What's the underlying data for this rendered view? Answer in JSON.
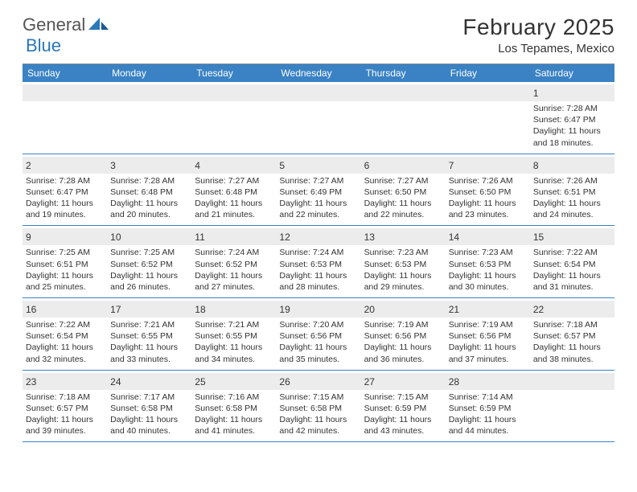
{
  "brand": {
    "part1": "General",
    "part2": "Blue"
  },
  "colors": {
    "header_bg": "#3a82c4",
    "daynum_bg": "#ececec",
    "week_border": "#3a82c4",
    "brand_blue": "#2b77b8",
    "text": "#333333"
  },
  "title": "February 2025",
  "location": "Los Tepames, Mexico",
  "weekdays": [
    "Sunday",
    "Monday",
    "Tuesday",
    "Wednesday",
    "Thursday",
    "Friday",
    "Saturday"
  ],
  "weeks": [
    [
      {
        "empty": true
      },
      {
        "empty": true
      },
      {
        "empty": true
      },
      {
        "empty": true
      },
      {
        "empty": true
      },
      {
        "empty": true
      },
      {
        "num": "1",
        "sunrise": "Sunrise: 7:28 AM",
        "sunset": "Sunset: 6:47 PM",
        "daylight1": "Daylight: 11 hours",
        "daylight2": "and 18 minutes."
      }
    ],
    [
      {
        "num": "2",
        "sunrise": "Sunrise: 7:28 AM",
        "sunset": "Sunset: 6:47 PM",
        "daylight1": "Daylight: 11 hours",
        "daylight2": "and 19 minutes."
      },
      {
        "num": "3",
        "sunrise": "Sunrise: 7:28 AM",
        "sunset": "Sunset: 6:48 PM",
        "daylight1": "Daylight: 11 hours",
        "daylight2": "and 20 minutes."
      },
      {
        "num": "4",
        "sunrise": "Sunrise: 7:27 AM",
        "sunset": "Sunset: 6:48 PM",
        "daylight1": "Daylight: 11 hours",
        "daylight2": "and 21 minutes."
      },
      {
        "num": "5",
        "sunrise": "Sunrise: 7:27 AM",
        "sunset": "Sunset: 6:49 PM",
        "daylight1": "Daylight: 11 hours",
        "daylight2": "and 22 minutes."
      },
      {
        "num": "6",
        "sunrise": "Sunrise: 7:27 AM",
        "sunset": "Sunset: 6:50 PM",
        "daylight1": "Daylight: 11 hours",
        "daylight2": "and 22 minutes."
      },
      {
        "num": "7",
        "sunrise": "Sunrise: 7:26 AM",
        "sunset": "Sunset: 6:50 PM",
        "daylight1": "Daylight: 11 hours",
        "daylight2": "and 23 minutes."
      },
      {
        "num": "8",
        "sunrise": "Sunrise: 7:26 AM",
        "sunset": "Sunset: 6:51 PM",
        "daylight1": "Daylight: 11 hours",
        "daylight2": "and 24 minutes."
      }
    ],
    [
      {
        "num": "9",
        "sunrise": "Sunrise: 7:25 AM",
        "sunset": "Sunset: 6:51 PM",
        "daylight1": "Daylight: 11 hours",
        "daylight2": "and 25 minutes."
      },
      {
        "num": "10",
        "sunrise": "Sunrise: 7:25 AM",
        "sunset": "Sunset: 6:52 PM",
        "daylight1": "Daylight: 11 hours",
        "daylight2": "and 26 minutes."
      },
      {
        "num": "11",
        "sunrise": "Sunrise: 7:24 AM",
        "sunset": "Sunset: 6:52 PM",
        "daylight1": "Daylight: 11 hours",
        "daylight2": "and 27 minutes."
      },
      {
        "num": "12",
        "sunrise": "Sunrise: 7:24 AM",
        "sunset": "Sunset: 6:53 PM",
        "daylight1": "Daylight: 11 hours",
        "daylight2": "and 28 minutes."
      },
      {
        "num": "13",
        "sunrise": "Sunrise: 7:23 AM",
        "sunset": "Sunset: 6:53 PM",
        "daylight1": "Daylight: 11 hours",
        "daylight2": "and 29 minutes."
      },
      {
        "num": "14",
        "sunrise": "Sunrise: 7:23 AM",
        "sunset": "Sunset: 6:53 PM",
        "daylight1": "Daylight: 11 hours",
        "daylight2": "and 30 minutes."
      },
      {
        "num": "15",
        "sunrise": "Sunrise: 7:22 AM",
        "sunset": "Sunset: 6:54 PM",
        "daylight1": "Daylight: 11 hours",
        "daylight2": "and 31 minutes."
      }
    ],
    [
      {
        "num": "16",
        "sunrise": "Sunrise: 7:22 AM",
        "sunset": "Sunset: 6:54 PM",
        "daylight1": "Daylight: 11 hours",
        "daylight2": "and 32 minutes."
      },
      {
        "num": "17",
        "sunrise": "Sunrise: 7:21 AM",
        "sunset": "Sunset: 6:55 PM",
        "daylight1": "Daylight: 11 hours",
        "daylight2": "and 33 minutes."
      },
      {
        "num": "18",
        "sunrise": "Sunrise: 7:21 AM",
        "sunset": "Sunset: 6:55 PM",
        "daylight1": "Daylight: 11 hours",
        "daylight2": "and 34 minutes."
      },
      {
        "num": "19",
        "sunrise": "Sunrise: 7:20 AM",
        "sunset": "Sunset: 6:56 PM",
        "daylight1": "Daylight: 11 hours",
        "daylight2": "and 35 minutes."
      },
      {
        "num": "20",
        "sunrise": "Sunrise: 7:19 AM",
        "sunset": "Sunset: 6:56 PM",
        "daylight1": "Daylight: 11 hours",
        "daylight2": "and 36 minutes."
      },
      {
        "num": "21",
        "sunrise": "Sunrise: 7:19 AM",
        "sunset": "Sunset: 6:56 PM",
        "daylight1": "Daylight: 11 hours",
        "daylight2": "and 37 minutes."
      },
      {
        "num": "22",
        "sunrise": "Sunrise: 7:18 AM",
        "sunset": "Sunset: 6:57 PM",
        "daylight1": "Daylight: 11 hours",
        "daylight2": "and 38 minutes."
      }
    ],
    [
      {
        "num": "23",
        "sunrise": "Sunrise: 7:18 AM",
        "sunset": "Sunset: 6:57 PM",
        "daylight1": "Daylight: 11 hours",
        "daylight2": "and 39 minutes."
      },
      {
        "num": "24",
        "sunrise": "Sunrise: 7:17 AM",
        "sunset": "Sunset: 6:58 PM",
        "daylight1": "Daylight: 11 hours",
        "daylight2": "and 40 minutes."
      },
      {
        "num": "25",
        "sunrise": "Sunrise: 7:16 AM",
        "sunset": "Sunset: 6:58 PM",
        "daylight1": "Daylight: 11 hours",
        "daylight2": "and 41 minutes."
      },
      {
        "num": "26",
        "sunrise": "Sunrise: 7:15 AM",
        "sunset": "Sunset: 6:58 PM",
        "daylight1": "Daylight: 11 hours",
        "daylight2": "and 42 minutes."
      },
      {
        "num": "27",
        "sunrise": "Sunrise: 7:15 AM",
        "sunset": "Sunset: 6:59 PM",
        "daylight1": "Daylight: 11 hours",
        "daylight2": "and 43 minutes."
      },
      {
        "num": "28",
        "sunrise": "Sunrise: 7:14 AM",
        "sunset": "Sunset: 6:59 PM",
        "daylight1": "Daylight: 11 hours",
        "daylight2": "and 44 minutes."
      },
      {
        "empty": true
      }
    ]
  ]
}
